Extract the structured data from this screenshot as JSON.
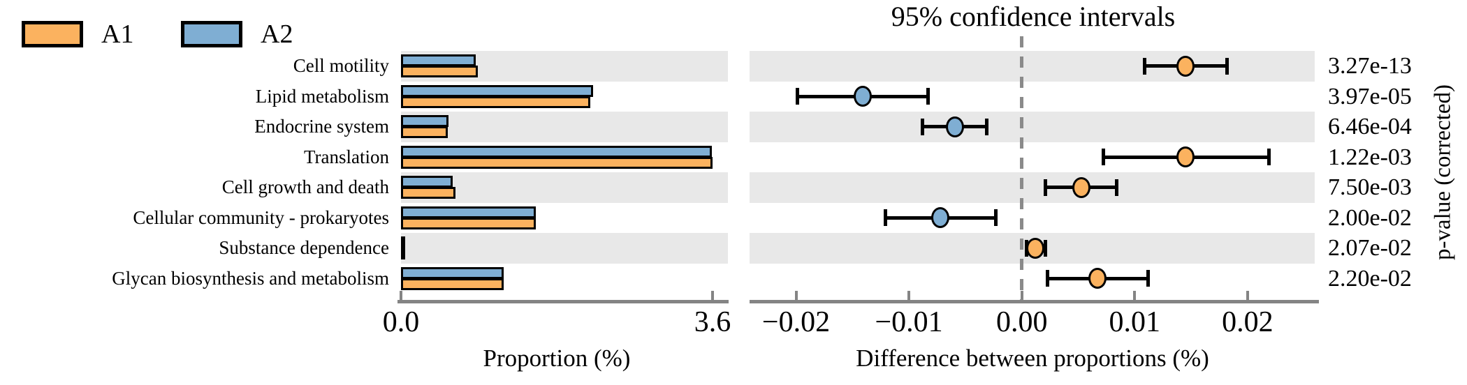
{
  "legend": {
    "items": [
      {
        "label": "A1",
        "color": "#FBB25F"
      },
      {
        "label": "A2",
        "color": "#7FAED3"
      }
    ]
  },
  "colors": {
    "a1_orange": "#FBB25F",
    "a2_blue": "#7FAED3",
    "row_shading": "#E8E8E8",
    "axis_gray": "#848484",
    "zero_line_gray": "#8A8A8A",
    "marker_outline": "#000000"
  },
  "chart_data": [
    {
      "type": "bar",
      "orientation": "horizontal",
      "xlabel": "Proportion (%)",
      "xlim": [
        0,
        3.78
      ],
      "xticks": [
        0.0,
        3.6
      ],
      "xtick_labels": [
        "0.0",
        "3.6"
      ],
      "grid": false,
      "row_shading": "alternate-gray",
      "categories": [
        "Cell motility",
        "Lipid metabolism",
        "Endocrine system",
        "Translation",
        "Cell growth and death",
        "Cellular community - prokaryotes",
        "Substance dependence",
        "Glycan biosynthesis and metabolism"
      ],
      "series": [
        {
          "name": "A1",
          "color": "#FBB25F",
          "values": [
            0.89,
            2.19,
            0.54,
            3.6,
            0.63,
            1.56,
            0.05,
            1.19
          ]
        },
        {
          "name": "A2",
          "color": "#7FAED3",
          "values": [
            0.86,
            2.22,
            0.55,
            3.59,
            0.6,
            1.56,
            0.04,
            1.19
          ]
        }
      ]
    },
    {
      "type": "scatter",
      "title": "95% confidence intervals",
      "xlabel": "Difference between proportions (%)",
      "ylabel_right": "p-value (corrected)",
      "xlim": [
        -0.024,
        0.026
      ],
      "xticks": [
        -0.02,
        -0.01,
        0.0,
        0.01,
        0.02
      ],
      "xtick_labels": [
        "−0.02",
        "−0.01",
        "0.00",
        "0.01",
        "0.02"
      ],
      "zero_line": true,
      "categories": [
        "Cell motility",
        "Lipid metabolism",
        "Endocrine system",
        "Translation",
        "Cell growth and death",
        "Cellular community - prokaryotes",
        "Substance dependence",
        "Glycan biosynthesis and metabolism"
      ],
      "points": [
        {
          "mean": 0.0145,
          "ci": [
            0.0109,
            0.0182
          ],
          "enriched": "A1"
        },
        {
          "mean": -0.0141,
          "ci": [
            -0.0199,
            -0.0083
          ],
          "enriched": "A2"
        },
        {
          "mean": -0.0059,
          "ci": [
            -0.0088,
            -0.0031
          ],
          "enriched": "A2"
        },
        {
          "mean": 0.0145,
          "ci": [
            0.0072,
            0.0219
          ],
          "enriched": "A1"
        },
        {
          "mean": 0.0053,
          "ci": [
            0.0021,
            0.0084
          ],
          "enriched": "A1"
        },
        {
          "mean": -0.0072,
          "ci": [
            -0.0121,
            -0.0023
          ],
          "enriched": "A2"
        },
        {
          "mean": 0.0012,
          "ci": [
            0.0004,
            0.0021
          ],
          "enriched": "A1"
        },
        {
          "mean": 0.0067,
          "ci": [
            0.0023,
            0.0112
          ],
          "enriched": "A1"
        }
      ],
      "p_values": [
        "3.27e-13",
        "3.97e-05",
        "6.46e-04",
        "1.22e-03",
        "7.50e-03",
        "2.00e-02",
        "2.07e-02",
        "2.20e-02"
      ]
    }
  ]
}
